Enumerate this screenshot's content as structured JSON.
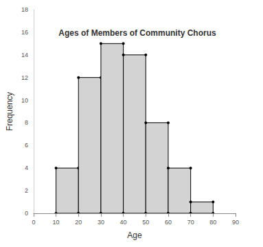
{
  "chart_data": {
    "type": "histogram",
    "title": "Ages of Members of Community Chorus",
    "x_label": "Age",
    "y_label": "Frequency",
    "bins": [
      10,
      20,
      30,
      40,
      50,
      60,
      70,
      80
    ],
    "values": [
      4,
      12,
      15,
      14,
      8,
      4,
      1
    ],
    "color": "#d3d3d3",
    "xlim": [
      0,
      90
    ],
    "xticks": [
      0,
      10,
      20,
      30,
      40,
      50,
      60,
      70,
      80,
      90
    ],
    "ylim": [
      0,
      18
    ],
    "yticks": [
      0,
      2,
      4,
      6,
      8,
      10,
      12,
      14,
      16,
      18
    ],
    "grid": false
  }
}
